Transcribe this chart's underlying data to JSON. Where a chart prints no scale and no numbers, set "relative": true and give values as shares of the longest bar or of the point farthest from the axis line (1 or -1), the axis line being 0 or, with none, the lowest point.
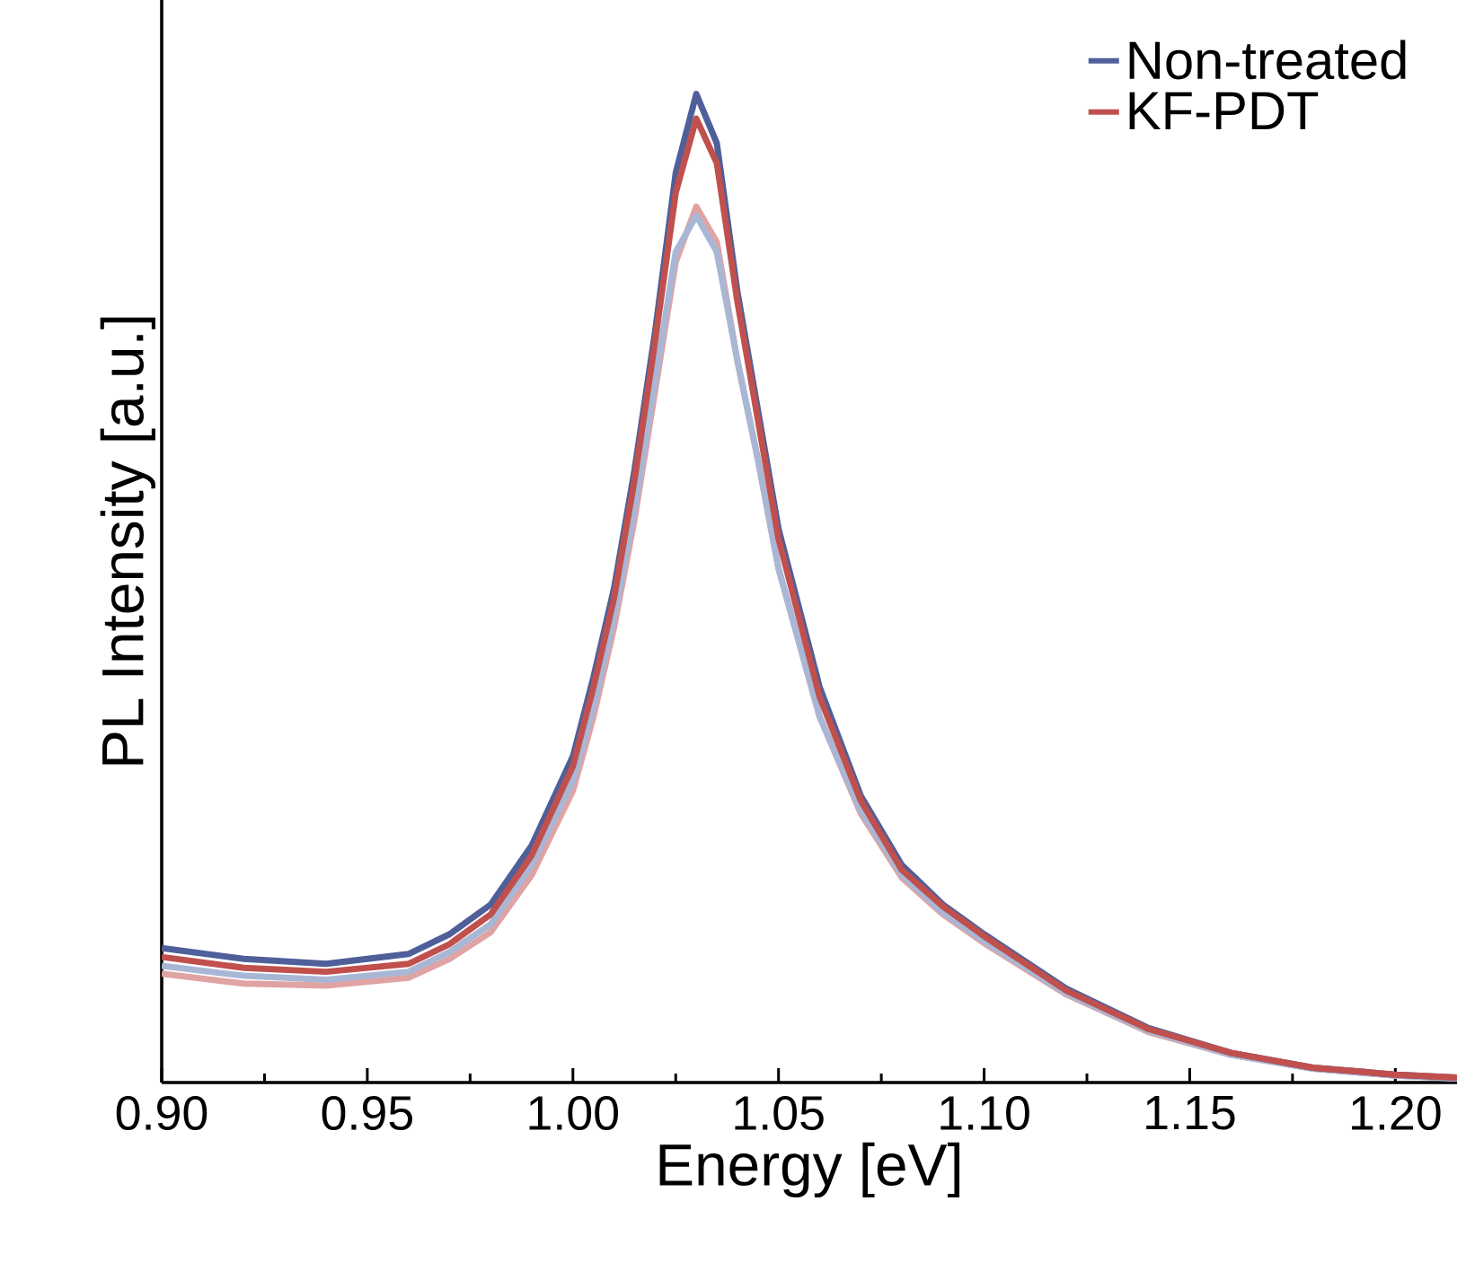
{
  "chart_data": {
    "type": "line",
    "xlabel": "Energy [eV]",
    "ylabel": "PL Intensity [a.u.]",
    "relative": true,
    "x": [
      0.9,
      0.92,
      0.94,
      0.96,
      0.97,
      0.98,
      0.99,
      1.0,
      1.005,
      1.01,
      1.015,
      1.02,
      1.025,
      1.03,
      1.035,
      1.04,
      1.045,
      1.05,
      1.06,
      1.07,
      1.08,
      1.09,
      1.1,
      1.12,
      1.14,
      1.16,
      1.18,
      1.2,
      1.215
    ],
    "xlim": [
      0.9,
      1.215
    ],
    "xticks": [
      {
        "value": 0.9,
        "label": "0.90"
      },
      {
        "value": 0.95,
        "label": "0.95"
      },
      {
        "value": 1.0,
        "label": "1.00"
      },
      {
        "value": 1.05,
        "label": "1.05"
      },
      {
        "value": 1.1,
        "label": "1.10"
      },
      {
        "value": 1.15,
        "label": "1.15"
      },
      {
        "value": 1.2,
        "label": "1.20"
      }
    ],
    "tick_labels": "x",
    "legend": "top right",
    "grid": false,
    "marker": "none",
    "line_style": "solid",
    "series": [
      {
        "color": "#e0a3a3",
        "values": [
          0.11,
          0.1,
          0.098,
          0.106,
          0.125,
          0.152,
          0.21,
          0.295,
          0.37,
          0.46,
          0.57,
          0.7,
          0.83,
          0.886,
          0.85,
          0.73,
          0.63,
          0.52,
          0.37,
          0.272,
          0.207,
          0.17,
          0.141,
          0.089,
          0.051,
          0.028,
          0.014,
          0.007,
          0.004
        ]
      },
      {
        "color": "#a9b7d6",
        "values": [
          0.118,
          0.108,
          0.104,
          0.112,
          0.132,
          0.16,
          0.22,
          0.305,
          0.38,
          0.47,
          0.58,
          0.71,
          0.84,
          0.877,
          0.84,
          0.73,
          0.63,
          0.52,
          0.37,
          0.275,
          0.21,
          0.172,
          0.143,
          0.09,
          0.052,
          0.028,
          0.014,
          0.007,
          0.004
        ]
      },
      {
        "name": "Non-treated",
        "color": "#4f5f9a",
        "values": [
          0.136,
          0.125,
          0.12,
          0.13,
          0.15,
          0.18,
          0.24,
          0.33,
          0.41,
          0.5,
          0.62,
          0.76,
          0.92,
          1.0,
          0.95,
          0.8,
          0.68,
          0.56,
          0.4,
          0.29,
          0.22,
          0.18,
          0.15,
          0.095,
          0.055,
          0.03,
          0.015,
          0.008,
          0.005
        ]
      },
      {
        "name": "KF-PDT",
        "color": "#c0504d",
        "values": [
          0.127,
          0.116,
          0.112,
          0.12,
          0.14,
          0.17,
          0.23,
          0.32,
          0.4,
          0.49,
          0.61,
          0.75,
          0.9,
          0.975,
          0.93,
          0.79,
          0.67,
          0.55,
          0.39,
          0.285,
          0.215,
          0.178,
          0.148,
          0.093,
          0.054,
          0.03,
          0.015,
          0.008,
          0.005
        ]
      }
    ]
  }
}
